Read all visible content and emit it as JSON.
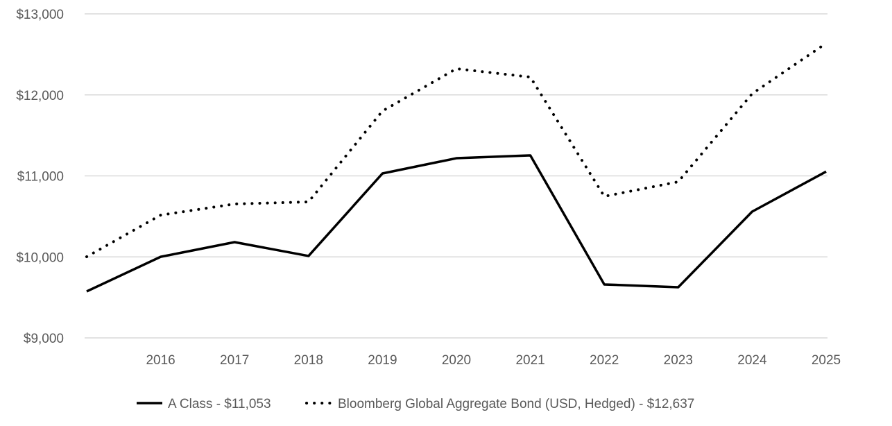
{
  "chart_data": {
    "type": "line",
    "title": "",
    "xlabel": "",
    "ylabel": "",
    "categories": [
      "",
      "2016",
      "2017",
      "2018",
      "2019",
      "2020",
      "2021",
      "2022",
      "2023",
      "2024",
      "2025"
    ],
    "ylim": [
      9000,
      13000
    ],
    "yticks": [
      9000,
      10000,
      11000,
      12000,
      13000
    ],
    "ytick_labels": [
      "$9,000",
      "$10,000",
      "$11,000",
      "$12,000",
      "$13,000"
    ],
    "grid": true,
    "legend_position": "bottom",
    "series": [
      {
        "name": "A Class - $11,053",
        "style": "solid",
        "color": "#000000",
        "values": [
          9574,
          10001,
          10182,
          10011,
          11030,
          11218,
          11253,
          9660,
          9625,
          10559,
          11053
        ]
      },
      {
        "name": "Bloomberg Global Aggregate Bond (USD, Hedged) - $12,637",
        "style": "dotted",
        "color": "#000000",
        "values": [
          10002,
          10516,
          10653,
          10679,
          11801,
          12323,
          12220,
          10747,
          10927,
          12015,
          12637
        ]
      }
    ]
  }
}
